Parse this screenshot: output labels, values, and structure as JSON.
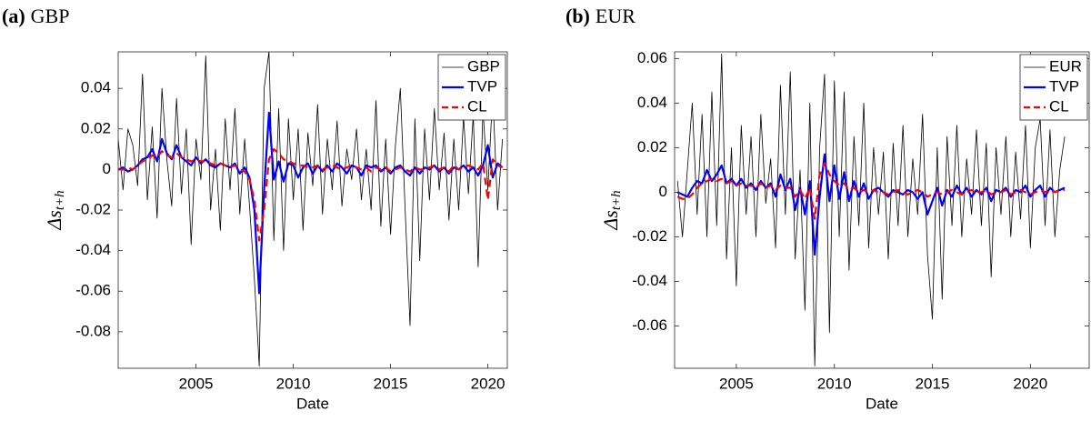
{
  "chart_data": [
    {
      "type": "line",
      "label": "(a)",
      "title": "GBP",
      "xlabel": "Date",
      "ylabel": "Δs_{t+h}",
      "xlim": [
        2001,
        2021
      ],
      "xticks": [
        2005,
        2010,
        2015,
        2020
      ],
      "ylim": [
        -0.098,
        0.058
      ],
      "yticks": [
        -0.08,
        -0.06,
        -0.04,
        -0.02,
        0,
        0.02,
        0.04
      ],
      "legend": "top-right",
      "grid": false,
      "x": [
        2001,
        2001.25,
        2001.5,
        2001.75,
        2002,
        2002.25,
        2002.5,
        2002.75,
        2003,
        2003.25,
        2003.5,
        2003.75,
        2004,
        2004.25,
        2004.5,
        2004.75,
        2005,
        2005.25,
        2005.5,
        2005.75,
        2006,
        2006.25,
        2006.5,
        2006.75,
        2007,
        2007.25,
        2007.5,
        2007.75,
        2008,
        2008.25,
        2008.5,
        2008.75,
        2009,
        2009.25,
        2009.5,
        2009.75,
        2010,
        2010.25,
        2010.5,
        2010.75,
        2011,
        2011.25,
        2011.5,
        2011.75,
        2012,
        2012.25,
        2012.5,
        2012.75,
        2013,
        2013.25,
        2013.5,
        2013.75,
        2014,
        2014.25,
        2014.5,
        2014.75,
        2015,
        2015.25,
        2015.5,
        2015.75,
        2016,
        2016.25,
        2016.5,
        2016.75,
        2017,
        2017.25,
        2017.5,
        2017.75,
        2018,
        2018.25,
        2018.5,
        2018.75,
        2019,
        2019.25,
        2019.5,
        2019.75,
        2020,
        2020.25,
        2020.5,
        2020.75
      ],
      "series": [
        {
          "name": "GBP",
          "color": "#000000",
          "width": 0.8,
          "dash": false,
          "values": [
            0.015,
            -0.01,
            0.02,
            0.012,
            -0.008,
            0.047,
            -0.015,
            0.021,
            -0.024,
            0.04,
            0.005,
            -0.018,
            0.035,
            -0.012,
            0.02,
            -0.037,
            0.015,
            -0.005,
            0.056,
            -0.02,
            0.01,
            -0.03,
            0.025,
            -0.01,
            0.03,
            -0.022,
            0.015,
            -0.018,
            -0.054,
            -0.097,
            0.04,
            0.058,
            -0.035,
            0.03,
            -0.04,
            0.025,
            -0.015,
            0.02,
            -0.03,
            0.018,
            -0.008,
            0.032,
            -0.022,
            0.015,
            -0.01,
            0.024,
            -0.018,
            0.01,
            -0.005,
            0.02,
            -0.015,
            0.01,
            -0.02,
            0.034,
            -0.028,
            0.015,
            -0.032,
            0.012,
            0.04,
            -0.02,
            -0.077,
            0.025,
            -0.045,
            0.02,
            -0.015,
            0.03,
            -0.01,
            0.018,
            -0.025,
            0.015,
            -0.02,
            0.026,
            -0.012,
            0.027,
            -0.048,
            0.03,
            -0.01,
            0.038,
            -0.02,
            0.015
          ]
        },
        {
          "name": "TVP",
          "color": "#0000ff",
          "width": 2.2,
          "dash": false,
          "values": [
            0,
            0.001,
            -0.001,
            0,
            0.002,
            0.005,
            0.006,
            0.01,
            0.004,
            0.015,
            0.008,
            0.005,
            0.012,
            0.006,
            0.004,
            0.002,
            0.006,
            0.003,
            0.005,
            0.002,
            0.001,
            0.003,
            0.002,
            0.001,
            0.003,
            -0.002,
            0.001,
            -0.004,
            -0.02,
            -0.061,
            -0.01,
            0.028,
            -0.005,
            0.004,
            -0.006,
            0.003,
            0.002,
            -0.004,
            0.001,
            0.003,
            -0.002,
            0.002,
            -0.001,
            0.002,
            -0.001,
            0.003,
            0.001,
            -0.002,
            0.002,
            0.001,
            -0.003,
            0.002,
            0.001,
            0.002,
            -0.001,
            0.001,
            -0.002,
            0.001,
            0.002,
            -0.001,
            -0.003,
            0.001,
            -0.002,
            0.001,
            0,
            0.002,
            -0.001,
            0.001,
            -0.002,
            0.001,
            0,
            0.002,
            -0.001,
            0.001,
            -0.003,
            0.002,
            0.012,
            -0.004,
            0.003,
            0.001
          ]
        },
        {
          "name": "CL",
          "color": "#ff0000",
          "width": 2.2,
          "dash": true,
          "values": [
            0,
            0,
            0.001,
            0,
            0.002,
            0.004,
            0.005,
            0.007,
            0.006,
            0.009,
            0.007,
            0.006,
            0.008,
            0.006,
            0.005,
            0.004,
            0.005,
            0.004,
            0.004,
            0.003,
            0.002,
            0.003,
            0.002,
            0.001,
            0.002,
            0,
            -0.001,
            -0.005,
            -0.015,
            -0.035,
            -0.02,
            0.005,
            0.01,
            0.008,
            0.005,
            0.004,
            0.003,
            0.002,
            0.002,
            0.001,
            0.001,
            0.002,
            0,
            0.001,
            0.002,
            0.001,
            0,
            0.001,
            0.002,
            0.001,
            0,
            0.001,
            -0.001,
            0.001,
            0,
            0.001,
            -0.001,
            0,
            0.001,
            0,
            -0.001,
            0.001,
            0,
            0,
            0.001,
            0.002,
            0,
            0.001,
            -0.001,
            0.002,
            0,
            0.001,
            0.002,
            0.001,
            0,
            0.003,
            -0.015,
            0.005,
            0.002,
            0.001
          ]
        }
      ]
    },
    {
      "type": "line",
      "label": "(b)",
      "title": "EUR",
      "xlabel": "Date",
      "ylabel": "Δs_{t+h}",
      "xlim": [
        2001.85,
        2023
      ],
      "xticks": [
        2005,
        2010,
        2015,
        2020
      ],
      "ylim": [
        -0.079,
        0.063
      ],
      "yticks": [
        -0.06,
        -0.04,
        -0.02,
        0,
        0.02,
        0.04,
        0.06
      ],
      "legend": "top-right",
      "grid": false,
      "x": [
        2002,
        2002.25,
        2002.5,
        2002.75,
        2003,
        2003.25,
        2003.5,
        2003.75,
        2004,
        2004.25,
        2004.5,
        2004.75,
        2005,
        2005.25,
        2005.5,
        2005.75,
        2006,
        2006.25,
        2006.5,
        2006.75,
        2007,
        2007.25,
        2007.5,
        2007.75,
        2008,
        2008.25,
        2008.5,
        2008.75,
        2009,
        2009.25,
        2009.5,
        2009.75,
        2010,
        2010.25,
        2010.5,
        2010.75,
        2011,
        2011.25,
        2011.5,
        2011.75,
        2012,
        2012.25,
        2012.5,
        2012.75,
        2013,
        2013.25,
        2013.5,
        2013.75,
        2014,
        2014.25,
        2014.5,
        2014.75,
        2015,
        2015.25,
        2015.5,
        2015.75,
        2016,
        2016.25,
        2016.5,
        2016.75,
        2017,
        2017.25,
        2017.5,
        2017.75,
        2018,
        2018.25,
        2018.5,
        2018.75,
        2019,
        2019.25,
        2019.5,
        2019.75,
        2020,
        2020.25,
        2020.5,
        2020.75,
        2021,
        2021.25,
        2021.5,
        2021.75
      ],
      "series": [
        {
          "name": "EUR",
          "color": "#000000",
          "width": 0.8,
          "dash": false,
          "values": [
            0.005,
            -0.02,
            0.01,
            0.04,
            -0.01,
            0.035,
            -0.02,
            0.045,
            -0.015,
            0.062,
            -0.03,
            0.02,
            -0.042,
            0.03,
            -0.01,
            0.025,
            -0.02,
            0.035,
            -0.005,
            0.015,
            -0.025,
            0.048,
            -0.01,
            0.054,
            -0.03,
            0.01,
            -0.053,
            0.04,
            -0.078,
            0.02,
            0.053,
            -0.063,
            0.05,
            -0.02,
            0.045,
            -0.035,
            0.025,
            -0.015,
            0.04,
            -0.025,
            0.02,
            -0.01,
            0.018,
            -0.03,
            0.022,
            -0.015,
            0.03,
            -0.02,
            0.015,
            -0.01,
            0.035,
            -0.028,
            -0.057,
            0.02,
            -0.048,
            0.025,
            -0.015,
            0.03,
            -0.02,
            0.015,
            -0.01,
            0.028,
            -0.015,
            0.022,
            -0.038,
            0.02,
            -0.01,
            0.025,
            -0.02,
            0.018,
            -0.012,
            0.03,
            -0.025,
            0.02,
            0.033,
            -0.015,
            0.028,
            -0.02,
            0.01,
            0.025
          ]
        },
        {
          "name": "TVP",
          "color": "#0000ff",
          "width": 2.2,
          "dash": false,
          "values": [
            0,
            -0.001,
            -0.002,
            0.002,
            0.005,
            0.004,
            0.01,
            0.005,
            0.008,
            0.012,
            0.004,
            0.006,
            0.003,
            0.006,
            0.002,
            0.004,
            0.001,
            0.005,
            0.002,
            0.004,
            -0.002,
            0.008,
            0.001,
            0.006,
            -0.008,
            0.002,
            -0.01,
            0.005,
            -0.028,
            -0.002,
            0.017,
            -0.004,
            0.012,
            -0.003,
            0.009,
            -0.004,
            0.005,
            -0.002,
            0.004,
            -0.003,
            0.001,
            0.002,
            0,
            -0.002,
            0.001,
            0,
            -0.001,
            0.001,
            0,
            -0.003,
            0,
            -0.01,
            -0.004,
            0.002,
            -0.006,
            0.001,
            -0.002,
            0.003,
            -0.001,
            0.002,
            -0.002,
            0.001,
            -0.001,
            0.002,
            -0.004,
            0.001,
            0,
            0.002,
            -0.002,
            0.001,
            0,
            0.003,
            -0.002,
            0.001,
            0.003,
            -0.002,
            0.002,
            0,
            0.001,
            0.002
          ]
        },
        {
          "name": "CL",
          "color": "#ff0000",
          "width": 2.2,
          "dash": true,
          "values": [
            -0.002,
            -0.003,
            -0.003,
            -0.001,
            0.002,
            0.004,
            0.005,
            0.006,
            0.005,
            0.006,
            0.004,
            0.005,
            0.003,
            0.004,
            0.003,
            0.003,
            0.002,
            0.004,
            0.002,
            0.003,
            0.001,
            0.003,
            0.002,
            0.002,
            -0.002,
            0.001,
            -0.003,
            0.002,
            -0.012,
            0.008,
            0.013,
            0.008,
            0.005,
            0.003,
            0.004,
            0.001,
            0.002,
            0,
            0.001,
            0,
            0.001,
            0,
            0,
            -0.001,
            0,
            0.001,
            0,
            -0.001,
            0,
            0.001,
            0,
            -0.002,
            -0.001,
            0,
            -0.001,
            0,
            0.001,
            0,
            -0.001,
            0,
            0.001,
            0,
            0,
            0.001,
            -0.001,
            0,
            0,
            0.001,
            -0.001,
            0,
            0.001,
            0,
            -0.001,
            0,
            0.001,
            0,
            0.001,
            0,
            0.001,
            0.001
          ]
        }
      ]
    }
  ]
}
